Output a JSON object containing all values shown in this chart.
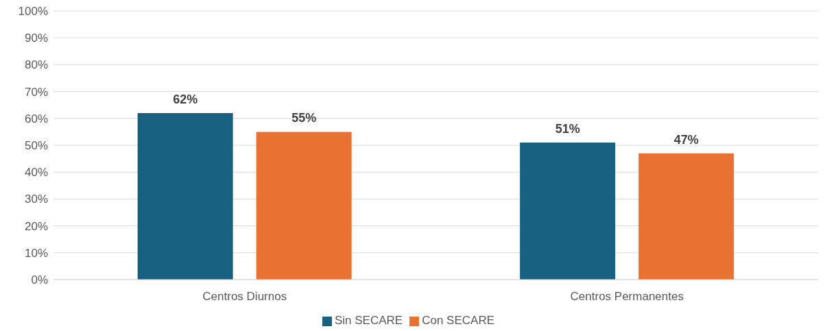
{
  "chart_data": {
    "type": "bar",
    "categories": [
      "Centros Diurnos",
      "Centros Permanentes"
    ],
    "series": [
      {
        "name": "Sin SECARE",
        "color": "#17607f",
        "values": [
          62,
          51
        ],
        "value_labels": [
          "62%",
          "51%"
        ]
      },
      {
        "name": "Con SECARE",
        "color": "#e97132",
        "values": [
          55,
          47
        ],
        "value_labels": [
          "55%",
          "47%"
        ]
      }
    ],
    "ylim": [
      0,
      100
    ],
    "yticks": [
      {
        "value": 0,
        "label": "0%"
      },
      {
        "value": 10,
        "label": "10%"
      },
      {
        "value": 20,
        "label": "20%"
      },
      {
        "value": 30,
        "label": "30%"
      },
      {
        "value": 40,
        "label": "40%"
      },
      {
        "value": 50,
        "label": "50%"
      },
      {
        "value": 60,
        "label": "60%"
      },
      {
        "value": 70,
        "label": "70%"
      },
      {
        "value": 80,
        "label": "80%"
      },
      {
        "value": 90,
        "label": "90%"
      },
      {
        "value": 100,
        "label": "100%"
      }
    ],
    "grid": "y",
    "legend": "bottom"
  }
}
